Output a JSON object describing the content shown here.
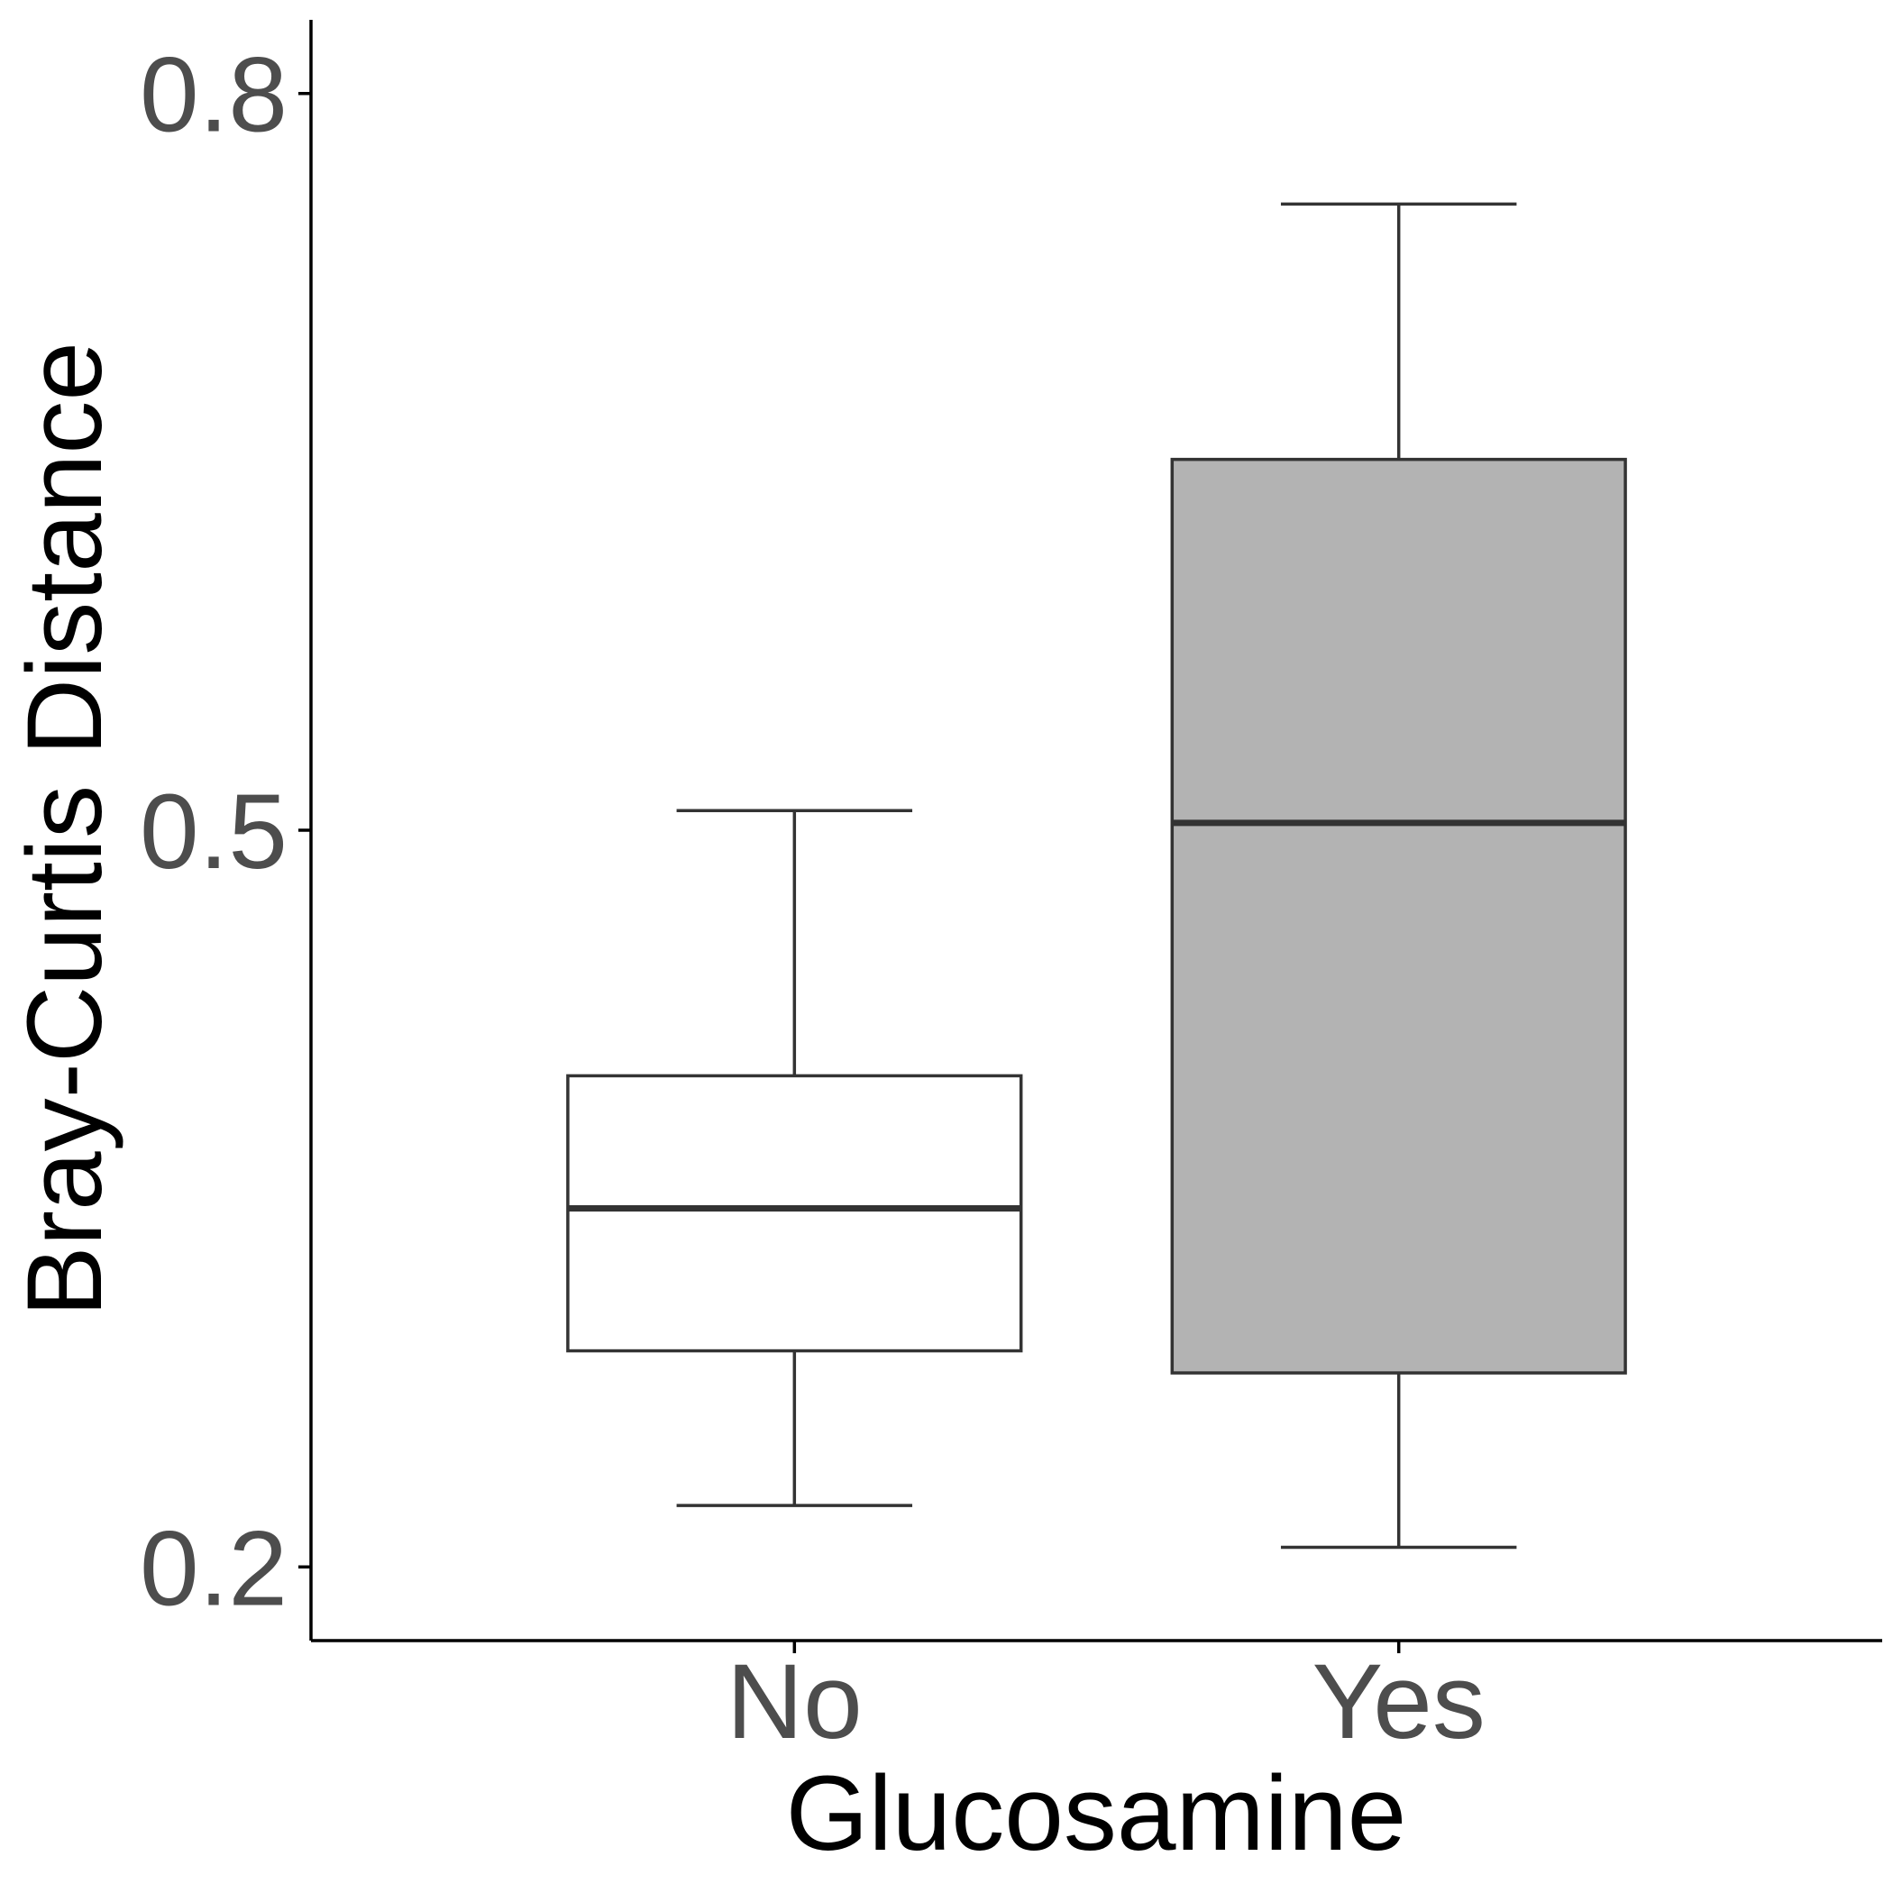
{
  "chart_data": {
    "type": "box",
    "categories": [
      "No",
      "Yes"
    ],
    "xlabel": "Glucosamine",
    "ylabel": "Bray-Curtis Distance",
    "ylim": [
      0.17,
      0.83
    ],
    "yticks": [
      0.2,
      0.5,
      0.8
    ],
    "ytick_labels": [
      "0.2",
      "0.5",
      "0.8"
    ],
    "grid": false,
    "boxes": [
      {
        "category": "No",
        "whisker_low": 0.225,
        "q1": 0.288,
        "median": 0.346,
        "q3": 0.4,
        "whisker_high": 0.508,
        "fill": "#ffffff"
      },
      {
        "category": "Yes",
        "whisker_low": 0.208,
        "q1": 0.279,
        "median": 0.503,
        "q3": 0.651,
        "whisker_high": 0.755,
        "fill": "#b3b3b3"
      }
    ],
    "colors": {
      "box_stroke": "#333333",
      "axis": "#000000",
      "tick_text": "#4d4d4d"
    }
  }
}
